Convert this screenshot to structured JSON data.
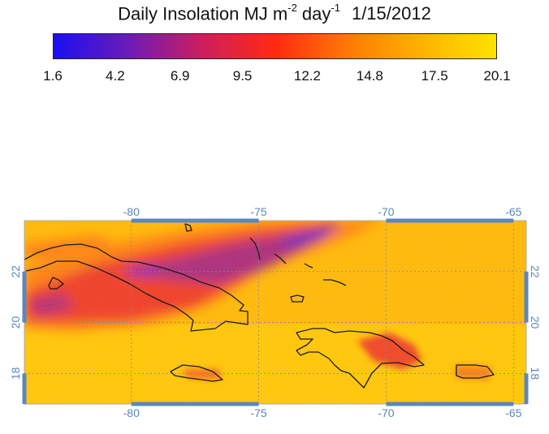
{
  "title": {
    "prefix": "Daily Insolation MJ m",
    "exp1": "-2",
    "mid": " day",
    "exp2": "-1",
    "date": "1/15/2012"
  },
  "colorbar": {
    "ticks": [
      "1.6",
      "4.2",
      "6.9",
      "9.5",
      "12.2",
      "14.8",
      "17.5",
      "20.1"
    ],
    "min": 1.6,
    "max": 20.1,
    "stops": [
      "#1a10f0",
      "#6a1bb8",
      "#cc1e5e",
      "#ff2a10",
      "#ff7a05",
      "#ffb300",
      "#ffe200"
    ]
  },
  "map": {
    "lon_labels": [
      "-80",
      "-75",
      "-70",
      "-65"
    ],
    "lat_labels": [
      "22",
      "20",
      "18"
    ],
    "lon_range": [
      -84.2,
      -64.5
    ],
    "lat_range": [
      16.8,
      24.0
    ],
    "axis_color": "#5b87bf",
    "grid_lons": [
      -80,
      -75,
      -70,
      -65
    ],
    "grid_lats": [
      18,
      20,
      22
    ]
  }
}
